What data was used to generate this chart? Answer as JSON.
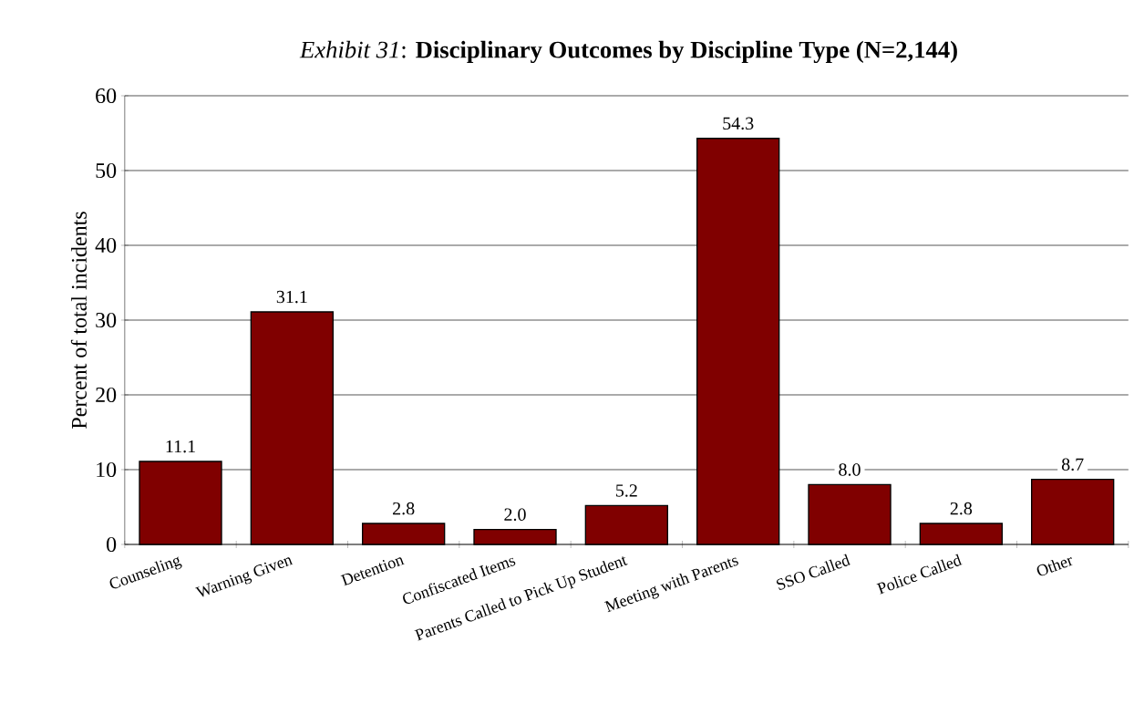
{
  "chart_data": {
    "type": "bar",
    "title": "*Exhibit 31*: **Disciplinary Outcomes by Discipline Type   (N=2,144)**",
    "ylabel": "Percent of total incidents",
    "categories": [
      "Counseling",
      "Warning Given",
      "Detention",
      "Confiscated Items",
      "Parents Called to Pick Up Student",
      "Meeting with Parents",
      "SSO Called",
      "Police Called",
      "Other"
    ],
    "values": [
      11.1,
      31.1,
      2.8,
      2.0,
      5.2,
      54.3,
      8.0,
      2.8,
      8.7
    ],
    "color": "#800000",
    "ylim": [
      0,
      60
    ],
    "yticks": [
      0,
      10,
      20,
      30,
      40,
      50,
      60
    ],
    "value_labels": [
      "11.1",
      "31.1",
      "2.8",
      "2.0",
      "5.2",
      "54.3",
      "8.0",
      "2.8",
      "8.7"
    ],
    "grid": "y"
  }
}
